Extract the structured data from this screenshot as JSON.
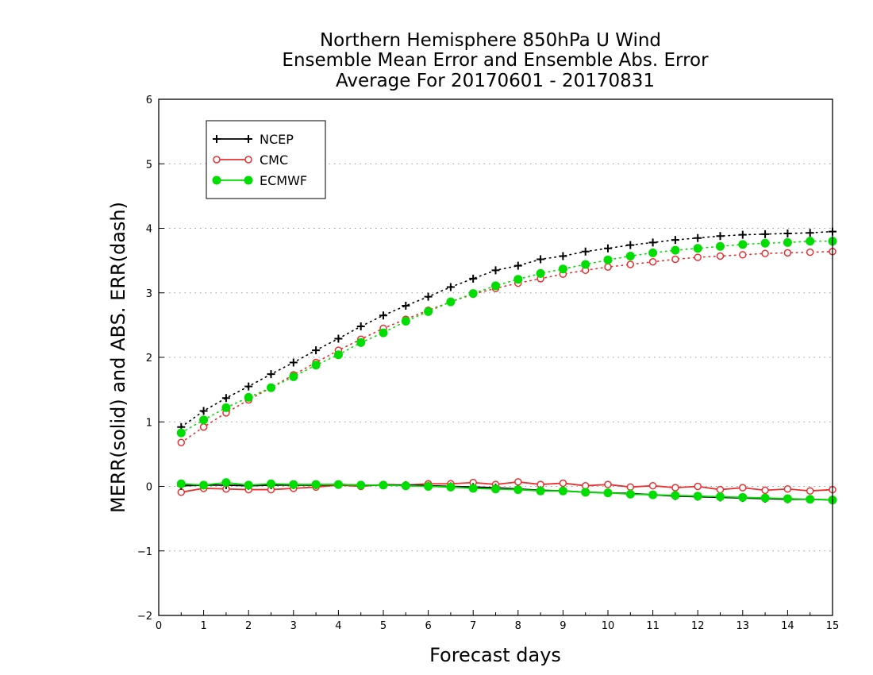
{
  "chart_data": {
    "type": "line",
    "title": [
      "Northern Hemisphere 850hPa U Wind",
      "Ensemble Mean Error and Ensemble Abs. Error",
      "Average For 20170601 - 20170831"
    ],
    "xlabel": "Forecast days",
    "ylabel": "MERR(solid) and ABS. ERR(dash)",
    "xlim": [
      0,
      15
    ],
    "ylim": [
      -2,
      6
    ],
    "xticks": [
      "0",
      "1",
      "2",
      "3",
      "4",
      "5",
      "6",
      "7",
      "8",
      "9",
      "10",
      "11",
      "12",
      "13",
      "14",
      "15"
    ],
    "yticks": [
      "−2",
      "−1",
      "0",
      "1",
      "2",
      "3",
      "4",
      "5",
      "6"
    ],
    "grid": "horizontal dotted",
    "legend_position": "top-left",
    "x": [
      0.5,
      1,
      1.5,
      2,
      2.5,
      3,
      3.5,
      4,
      4.5,
      5,
      5.5,
      6,
      6.5,
      7,
      7.5,
      8,
      8.5,
      9,
      9.5,
      10,
      10.5,
      11,
      11.5,
      12,
      12.5,
      13,
      13.5,
      14,
      14.5,
      15
    ],
    "series": [
      {
        "name": "NCEP",
        "color": "#000000",
        "marker": "plus",
        "abs_err": [
          0.92,
          1.17,
          1.37,
          1.55,
          1.74,
          1.92,
          2.11,
          2.29,
          2.48,
          2.65,
          2.8,
          2.94,
          3.09,
          3.22,
          3.35,
          3.42,
          3.52,
          3.57,
          3.64,
          3.69,
          3.74,
          3.78,
          3.82,
          3.85,
          3.88,
          3.9,
          3.91,
          3.92,
          3.93,
          3.95
        ],
        "mean_err": [
          0.01,
          0.02,
          0.02,
          0.01,
          0.02,
          0.02,
          0.02,
          0.03,
          0.02,
          0.02,
          0.02,
          0.01,
          0.0,
          -0.01,
          -0.02,
          -0.04,
          -0.06,
          -0.07,
          -0.09,
          -0.1,
          -0.11,
          -0.13,
          -0.15,
          -0.16,
          -0.17,
          -0.18,
          -0.19,
          -0.2,
          -0.2,
          -0.21
        ]
      },
      {
        "name": "CMC",
        "color": "#e83030",
        "marker": "open-circle",
        "abs_err": [
          0.68,
          0.92,
          1.14,
          1.34,
          1.53,
          1.73,
          1.92,
          2.11,
          2.28,
          2.45,
          2.59,
          2.73,
          2.86,
          2.98,
          3.07,
          3.15,
          3.22,
          3.29,
          3.35,
          3.4,
          3.44,
          3.48,
          3.52,
          3.55,
          3.57,
          3.59,
          3.61,
          3.62,
          3.63,
          3.64
        ],
        "mean_err": [
          -0.09,
          -0.03,
          -0.04,
          -0.05,
          -0.05,
          -0.03,
          -0.01,
          0.02,
          0.0,
          0.03,
          0.02,
          0.04,
          0.04,
          0.06,
          0.03,
          0.07,
          0.03,
          0.05,
          0.01,
          0.03,
          -0.01,
          0.01,
          -0.02,
          0.0,
          -0.05,
          -0.02,
          -0.06,
          -0.04,
          -0.07,
          -0.05
        ]
      },
      {
        "name": "ECMWF",
        "color": "#00dd00",
        "marker": "filled-circle",
        "abs_err": [
          0.83,
          1.03,
          1.22,
          1.38,
          1.53,
          1.7,
          1.88,
          2.04,
          2.23,
          2.38,
          2.56,
          2.71,
          2.86,
          2.99,
          3.11,
          3.21,
          3.3,
          3.37,
          3.44,
          3.51,
          3.57,
          3.62,
          3.66,
          3.69,
          3.72,
          3.75,
          3.77,
          3.78,
          3.8,
          3.8
        ],
        "mean_err": [
          0.04,
          0.02,
          0.06,
          0.02,
          0.04,
          0.03,
          0.03,
          0.03,
          0.02,
          0.02,
          0.01,
          0.0,
          -0.01,
          -0.03,
          -0.04,
          -0.05,
          -0.07,
          -0.07,
          -0.09,
          -0.1,
          -0.12,
          -0.13,
          -0.14,
          -0.15,
          -0.16,
          -0.17,
          -0.18,
          -0.19,
          -0.2,
          -0.21
        ]
      }
    ]
  }
}
